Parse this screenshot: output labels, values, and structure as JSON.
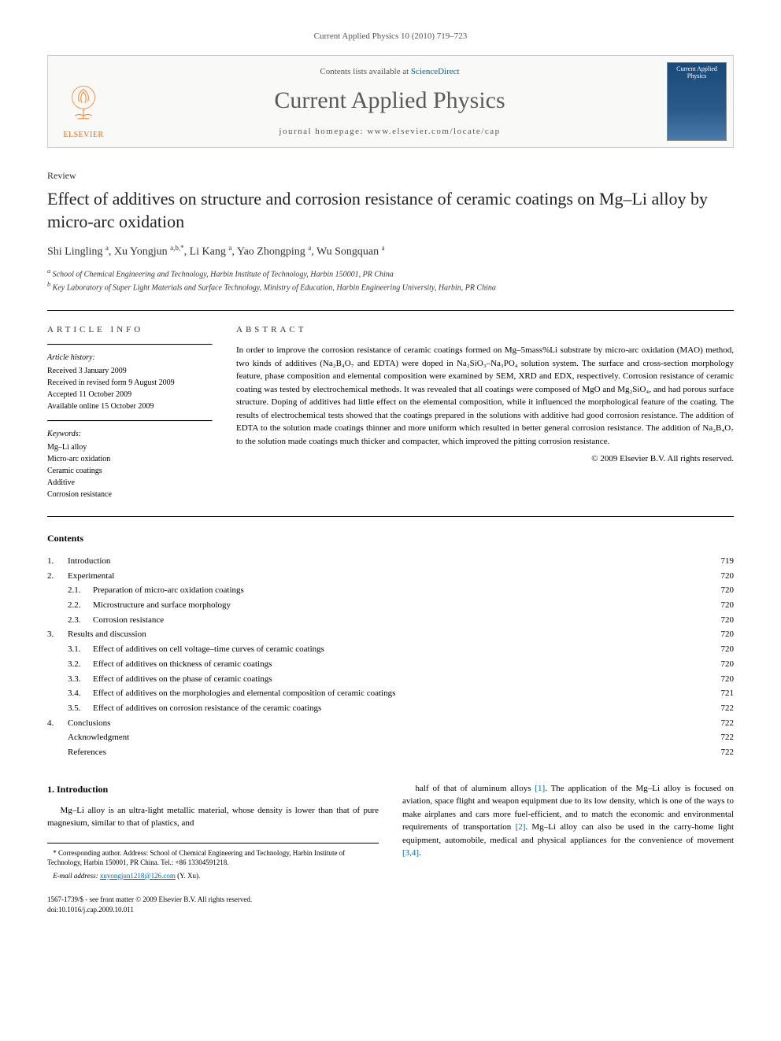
{
  "runningHeader": "Current Applied Physics 10 (2010) 719–723",
  "masthead": {
    "contentsPrefix": "Contents lists available at ",
    "contentsLink": "ScienceDirect",
    "journalName": "Current Applied Physics",
    "homepagePrefix": "journal homepage: ",
    "homepageUrl": "www.elsevier.com/locate/cap",
    "publisherName": "ELSEVIER",
    "coverTitle": "Current Applied Physics"
  },
  "article": {
    "type": "Review",
    "title": "Effect of additives on structure and corrosion resistance of ceramic coatings on Mg–Li alloy by micro-arc oxidation",
    "authorsHtml": "Shi Lingling <sup>a</sup>, Xu Yongjun <sup>a,b,*</sup>, Li Kang <sup>a</sup>, Yao Zhongping <sup>a</sup>, Wu Songquan <sup>a</sup>",
    "affiliations": [
      "a School of Chemical Engineering and Technology, Harbin Institute of Technology, Harbin 150001, PR China",
      "b Key Laboratory of Super Light Materials and Surface Technology, Ministry of Education, Harbin Engineering University, Harbin, PR China"
    ]
  },
  "info": {
    "heading": "ARTICLE INFO",
    "historyLabel": "Article history:",
    "history": [
      "Received 3 January 2009",
      "Received in revised form 9 August 2009",
      "Accepted 11 October 2009",
      "Available online 15 October 2009"
    ],
    "keywordsLabel": "Keywords:",
    "keywords": [
      "Mg–Li alloy",
      "Micro-arc oxidation",
      "Ceramic coatings",
      "Additive",
      "Corrosion resistance"
    ]
  },
  "abstract": {
    "heading": "ABSTRACT",
    "text": "In order to improve the corrosion resistance of ceramic coatings formed on Mg–5mass%Li substrate by micro-arc oxidation (MAO) method, two kinds of additives (Na₂B₄O₇ and EDTA) were doped in Na₂SiO₃–Na₃PO₄ solution system. The surface and cross-section morphology feature, phase composition and elemental composition were examined by SEM, XRD and EDX, respectively. Corrosion resistance of ceramic coating was tested by electrochemical methods. It was revealed that all coatings were composed of MgO and Mg₂SiO₄, and had porous surface structure. Doping of additives had little effect on the elemental composition, while it influenced the morphological feature of the coating. The results of electrochemical tests showed that the coatings prepared in the solutions with additive had good corrosion resistance. The addition of EDTA to the solution made coatings thinner and more uniform which resulted in better general corrosion resistance. The addition of Na₂B₄O₇ to the solution made coatings much thicker and compacter, which improved the pitting corrosion resistance.",
    "copyright": "© 2009 Elsevier B.V. All rights reserved."
  },
  "contents": {
    "heading": "Contents",
    "items": [
      {
        "num": "1.",
        "label": "Introduction",
        "page": "719",
        "level": 0
      },
      {
        "num": "2.",
        "label": "Experimental",
        "page": "720",
        "level": 0
      },
      {
        "num": "2.1.",
        "label": "Preparation of micro-arc oxidation coatings",
        "page": "720",
        "level": 1
      },
      {
        "num": "2.2.",
        "label": "Microstructure and surface morphology",
        "page": "720",
        "level": 1
      },
      {
        "num": "2.3.",
        "label": "Corrosion resistance",
        "page": "720",
        "level": 1
      },
      {
        "num": "3.",
        "label": "Results and discussion",
        "page": "720",
        "level": 0
      },
      {
        "num": "3.1.",
        "label": "Effect of additives on cell voltage–time curves of ceramic coatings",
        "page": "720",
        "level": 1
      },
      {
        "num": "3.2.",
        "label": "Effect of additives on thickness of ceramic coatings",
        "page": "720",
        "level": 1
      },
      {
        "num": "3.3.",
        "label": "Effect of additives on the phase of ceramic coatings",
        "page": "720",
        "level": 1
      },
      {
        "num": "3.4.",
        "label": "Effect of additives on the morphologies and elemental composition of ceramic coatings",
        "page": "721",
        "level": 1
      },
      {
        "num": "3.5.",
        "label": "Effect of additives on corrosion resistance of the ceramic coatings",
        "page": "722",
        "level": 1
      },
      {
        "num": "4.",
        "label": "Conclusions",
        "page": "722",
        "level": 0
      },
      {
        "num": "",
        "label": "Acknowledgment",
        "page": "722",
        "level": 2
      },
      {
        "num": "",
        "label": "References",
        "page": "722",
        "level": 2
      }
    ]
  },
  "body": {
    "introHeading": "1. Introduction",
    "leftPara": "Mg–Li alloy is an ultra-light metallic material, whose density is lower than that of pure magnesium, similar to that of plastics, and",
    "rightPara": "half of that of aluminum alloys [1]. The application of the Mg–Li alloy is focused on aviation, space flight and weapon equipment due to its low density, which is one of the ways to make airplanes and cars more fuel-efficient, and to match the economic and environmental requirements of transportation [2]. Mg–Li alloy can also be used in the carry-home light equipment, automobile, medical and physical appliances for the convenience of movement [3,4].",
    "footnoteStar": "* Corresponding author. Address: School of Chemical Engineering and Technology, Harbin Institute of Technology, Harbin 150001, PR China. Tel.: +86 13304591218.",
    "footnoteEmailLabel": "E-mail address: ",
    "footnoteEmail": "xuyongjun1218@126.com",
    "footnoteEmailSuffix": " (Y. Xu)."
  },
  "footer": {
    "issnLine": "1567-1739/$ - see front matter © 2009 Elsevier B.V. All rights reserved.",
    "doiLine": "doi:10.1016/j.cap.2009.10.011"
  },
  "colors": {
    "link": "#0066aa",
    "elsevierOrange": "#ff6600",
    "grayText": "#5a5a5a"
  }
}
